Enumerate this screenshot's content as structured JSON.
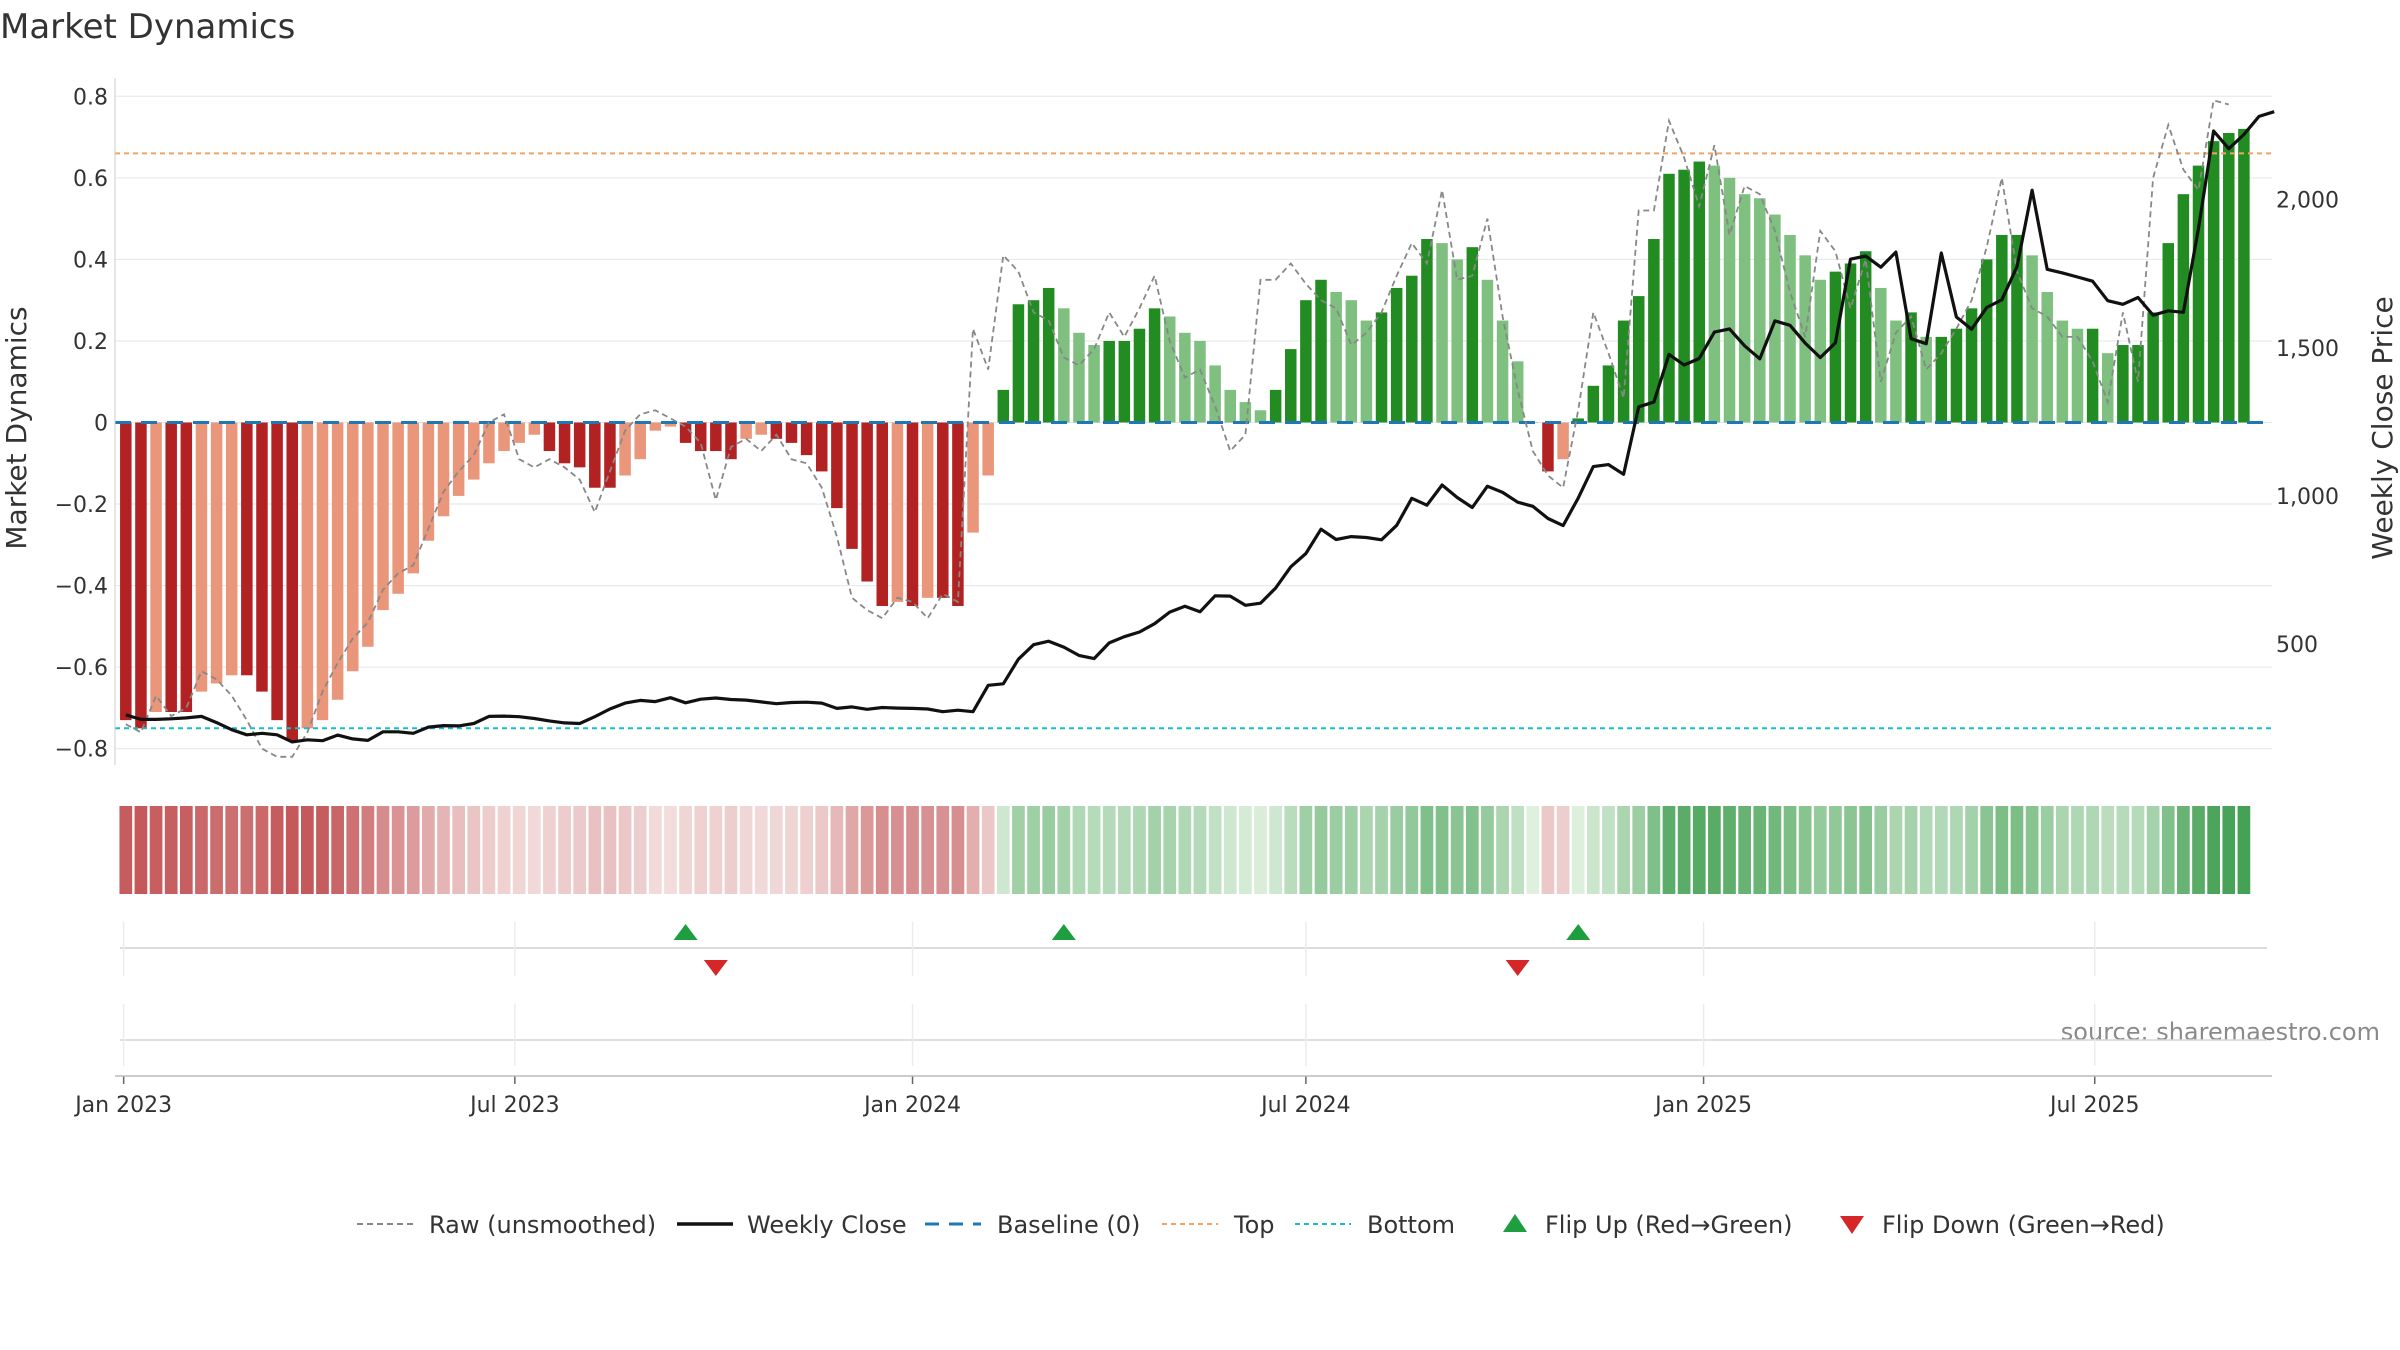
{
  "chart_data": {
    "type": "bar",
    "title": "Market Dynamics",
    "source": "source: sharemaestro.com",
    "ylabel_left": "Market Dynamics",
    "ylabel_right": "Weekly Close Price",
    "ylim_left": [
      -0.84,
      0.84
    ],
    "ylim_right": [
      92,
      2404
    ],
    "yticks_left": [
      0.8,
      0.6,
      0.4,
      0.2,
      0,
      -0.2,
      -0.4,
      -0.6,
      -0.8
    ],
    "ytick_labels_left": [
      "0.8",
      "0.6",
      "0.4",
      "0.2",
      "0",
      "−0.2",
      "−0.4",
      "−0.6",
      "−0.8"
    ],
    "yticks_right": [
      2000,
      1500,
      1000,
      500
    ],
    "ytick_labels_right": [
      "2,000",
      "1,500",
      "1,000",
      "500"
    ],
    "x_start": "2023-01-02",
    "x_step_days": 7,
    "xlim": [
      "2022-12-28",
      "2025-09-21"
    ],
    "xticks": [
      "2023-01-01",
      "2023-07-01",
      "2024-01-01",
      "2024-07-01",
      "2025-01-01",
      "2025-07-01"
    ],
    "xtick_labels": [
      "Jan 2023",
      "Jul 2023",
      "Jan 2024",
      "Jul 2024",
      "Jan 2025",
      "Jul 2025"
    ],
    "top_line": 0.66,
    "bottom_line": -0.75,
    "baseline": 0,
    "values": [
      -0.73,
      -0.75,
      -0.71,
      -0.71,
      -0.71,
      -0.66,
      -0.64,
      -0.62,
      -0.62,
      -0.66,
      -0.73,
      -0.78,
      -0.75,
      -0.73,
      -0.68,
      -0.61,
      -0.55,
      -0.46,
      -0.42,
      -0.37,
      -0.29,
      -0.23,
      -0.18,
      -0.14,
      -0.1,
      -0.07,
      -0.05,
      -0.03,
      -0.07,
      -0.1,
      -0.11,
      -0.16,
      -0.16,
      -0.13,
      -0.09,
      -0.02,
      -0.01,
      -0.05,
      -0.07,
      -0.07,
      -0.09,
      -0.04,
      -0.03,
      -0.04,
      -0.05,
      -0.08,
      -0.12,
      -0.21,
      -0.31,
      -0.39,
      -0.45,
      -0.44,
      -0.45,
      -0.43,
      -0.43,
      -0.45,
      -0.27,
      -0.13,
      0.08,
      0.29,
      0.3,
      0.33,
      0.28,
      0.22,
      0.19,
      0.2,
      0.2,
      0.23,
      0.28,
      0.26,
      0.22,
      0.2,
      0.14,
      0.08,
      0.05,
      0.03,
      0.08,
      0.18,
      0.3,
      0.35,
      0.32,
      0.3,
      0.25,
      0.27,
      0.33,
      0.36,
      0.45,
      0.44,
      0.4,
      0.43,
      0.35,
      0.25,
      0.15,
      0.0,
      -0.12,
      -0.09,
      0.01,
      0.09,
      0.14,
      0.25,
      0.31,
      0.45,
      0.61,
      0.62,
      0.64,
      0.63,
      0.6,
      0.56,
      0.55,
      0.51,
      0.46,
      0.41,
      0.35,
      0.37,
      0.39,
      0.42,
      0.33,
      0.25,
      0.27,
      0.21,
      0.21,
      0.23,
      0.28,
      0.4,
      0.46,
      0.46,
      0.41,
      0.32,
      0.25,
      0.23,
      0.23,
      0.17,
      0.19,
      0.19,
      0.27,
      0.44,
      0.56,
      0.63,
      0.69,
      0.71,
      0.72
    ],
    "raw": [
      -0.74,
      -0.76,
      -0.67,
      -0.72,
      -0.7,
      -0.61,
      -0.63,
      -0.67,
      -0.73,
      -0.8,
      -0.82,
      -0.82,
      -0.76,
      -0.66,
      -0.59,
      -0.53,
      -0.49,
      -0.41,
      -0.37,
      -0.35,
      -0.26,
      -0.17,
      -0.12,
      -0.08,
      0.0,
      0.02,
      -0.09,
      -0.11,
      -0.09,
      -0.11,
      -0.14,
      -0.22,
      -0.12,
      -0.02,
      0.02,
      0.03,
      0.01,
      -0.01,
      -0.05,
      -0.19,
      -0.06,
      -0.04,
      -0.07,
      -0.03,
      -0.09,
      -0.1,
      -0.16,
      -0.28,
      -0.43,
      -0.46,
      -0.48,
      -0.43,
      -0.44,
      -0.48,
      -0.42,
      -0.44,
      0.23,
      0.13,
      0.41,
      0.37,
      0.27,
      0.25,
      0.16,
      0.14,
      0.18,
      0.27,
      0.21,
      0.28,
      0.36,
      0.2,
      0.11,
      0.13,
      0.04,
      -0.07,
      -0.03,
      0.35,
      0.35,
      0.39,
      0.34,
      0.3,
      0.28,
      0.19,
      0.22,
      0.27,
      0.36,
      0.44,
      0.39,
      0.57,
      0.35,
      0.36,
      0.5,
      0.26,
      0.08,
      -0.07,
      -0.13,
      -0.16,
      0.03,
      0.27,
      0.17,
      0.06,
      0.52,
      0.52,
      0.74,
      0.65,
      0.53,
      0.68,
      0.46,
      0.58,
      0.56,
      0.47,
      0.32,
      0.21,
      0.47,
      0.42,
      0.28,
      0.4,
      0.1,
      0.22,
      0.26,
      0.13,
      0.17,
      0.23,
      0.3,
      0.43,
      0.6,
      0.37,
      0.28,
      0.26,
      0.21,
      0.21,
      0.15,
      0.05,
      0.27,
      0.1,
      0.6,
      0.73,
      0.62,
      0.57,
      0.79,
      0.78
    ],
    "weekly_close": [
      261,
      246,
      246,
      248,
      251,
      256,
      235,
      211,
      194,
      199,
      194,
      170,
      177,
      174,
      193,
      180,
      175,
      204,
      204,
      199,
      220,
      225,
      224,
      232,
      256,
      257,
      255,
      249,
      241,
      234,
      232,
      255,
      281,
      301,
      310,
      306,
      319,
      302,
      314,
      318,
      313,
      311,
      305,
      299,
      303,
      304,
      301,
      283,
      288,
      280,
      286,
      284,
      283,
      281,
      272,
      277,
      272,
      361,
      366,
      449,
      498,
      510,
      490,
      462,
      451,
      504,
      525,
      541,
      569,
      608,
      628,
      609,
      663,
      662,
      631,
      638,
      689,
      761,
      806,
      888,
      853,
      863,
      860,
      852,
      901,
      992,
      969,
      1037,
      995,
      961,
      1033,
      1012,
      979,
      965,
      924,
      900,
      993,
      1099,
      1106,
      1073,
      1301,
      1317,
      1478,
      1442,
      1464,
      1553,
      1564,
      1507,
      1463,
      1591,
      1576,
      1516,
      1467,
      1517,
      1799,
      1810,
      1772,
      1823,
      1531,
      1514,
      1820,
      1604,
      1563,
      1636,
      1662,
      1774,
      2032,
      1765,
      1753,
      1739,
      1725,
      1659,
      1647,
      1670,
      1610,
      1625,
      1620,
      1903,
      2232,
      2172,
      2220,
      2281,
      2297
    ],
    "heat_strip": [
      -0.73,
      -0.75,
      -0.71,
      -0.71,
      -0.71,
      -0.66,
      -0.64,
      -0.62,
      -0.62,
      -0.66,
      -0.73,
      -0.78,
      -0.75,
      -0.73,
      -0.68,
      -0.61,
      -0.55,
      -0.46,
      -0.42,
      -0.37,
      -0.29,
      -0.23,
      -0.18,
      -0.14,
      -0.1,
      -0.07,
      -0.05,
      -0.03,
      -0.07,
      -0.1,
      -0.11,
      -0.16,
      -0.16,
      -0.13,
      -0.09,
      -0.02,
      -0.01,
      -0.05,
      -0.07,
      -0.07,
      -0.09,
      -0.04,
      -0.03,
      -0.04,
      -0.05,
      -0.08,
      -0.12,
      -0.21,
      -0.31,
      -0.39,
      -0.45,
      -0.44,
      -0.45,
      -0.43,
      -0.43,
      -0.45,
      -0.27,
      -0.13,
      0.08,
      0.29,
      0.3,
      0.33,
      0.28,
      0.22,
      0.19,
      0.2,
      0.2,
      0.23,
      0.28,
      0.26,
      0.22,
      0.2,
      0.14,
      0.08,
      0.05,
      0.03,
      0.08,
      0.18,
      0.3,
      0.35,
      0.32,
      0.3,
      0.25,
      0.27,
      0.33,
      0.36,
      0.45,
      0.44,
      0.4,
      0.43,
      0.35,
      0.25,
      0.15,
      0.0,
      -0.12,
      -0.09,
      0.01,
      0.09,
      0.14,
      0.25,
      0.31,
      0.45,
      0.61,
      0.62,
      0.64,
      0.63,
      0.6,
      0.56,
      0.55,
      0.51,
      0.46,
      0.41,
      0.35,
      0.37,
      0.39,
      0.42,
      0.33,
      0.25,
      0.27,
      0.21,
      0.21,
      0.23,
      0.28,
      0.4,
      0.46,
      0.46,
      0.41,
      0.32,
      0.25,
      0.23,
      0.23,
      0.17,
      0.19,
      0.19,
      0.27,
      0.44,
      0.56,
      0.63,
      0.69,
      0.71,
      0.72
    ],
    "flip_up_dates": [
      "2023-09-18",
      "2024-03-11",
      "2024-11-04"
    ],
    "flip_down_dates": [
      "2023-10-02",
      "2024-10-07"
    ],
    "colors": {
      "pos_strong": "#228B22",
      "pos_weak": "#7FBF7F",
      "neg_strong": "#B22222",
      "neg_weak": "#E9967A",
      "weekly_close": "#111111",
      "raw": "#888888",
      "baseline": "#1F77B4",
      "top": "#F4A460",
      "bottom": "#17BECF",
      "flip_up": "#1E9E3E",
      "flip_down": "#D62728",
      "grid": "#e6e6e6"
    },
    "legend": [
      {
        "label": "Raw (unsmoothed)",
        "kind": "dashed-gray"
      },
      {
        "label": "Weekly Close",
        "kind": "solid-black"
      },
      {
        "label": "Baseline (0)",
        "kind": "dashed-blue"
      },
      {
        "label": "Top",
        "kind": "dotted-orange"
      },
      {
        "label": "Bottom",
        "kind": "dotted-cyan"
      },
      {
        "label": "Flip Up (Red→Green)",
        "kind": "triangle-up"
      },
      {
        "label": "Flip Down (Green→Red)",
        "kind": "triangle-down"
      }
    ],
    "legend_position": "bottom-center",
    "grid": true
  }
}
